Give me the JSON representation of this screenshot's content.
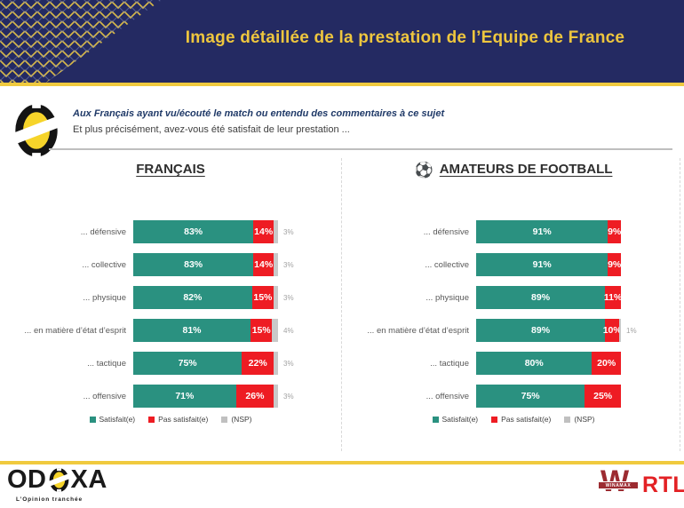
{
  "header": {
    "title": "Image détaillée de la prestation de l’Equipe de France"
  },
  "question": {
    "line1": "Aux Français ayant vu/écouté le match ou entendu des commentaires à ce sujet",
    "line2": "Et plus précisément, avez-vous été satisfait de leur prestation ..."
  },
  "icons": {
    "soccer_ball": "⚽"
  },
  "colors": {
    "navy": "#242a62",
    "gold": "#eec63e",
    "satisfait_green": "#2a9180",
    "pas_satisfait_red": "#ee1c23",
    "nsp_gray": "#c9c9c9"
  },
  "legend": {
    "satisfait": "Satisfait(e)",
    "pas_satisfait": "Pas satisfait(e)",
    "nsp": "(NSP)"
  },
  "chart_data": [
    {
      "type": "bar",
      "orientation": "horizontal",
      "stacked": true,
      "title": "FRANÇAIS",
      "xlim": [
        0,
        100
      ],
      "categories": [
        "... défensive",
        "... collective",
        "... physique",
        "... en matière d’état d’esprit",
        "... tactique",
        "... offensive"
      ],
      "series": [
        {
          "name": "Satisfait(e)",
          "color": "#2a9180",
          "values": [
            83,
            83,
            82,
            81,
            75,
            71
          ]
        },
        {
          "name": "Pas satisfait(e)",
          "color": "#ee1c23",
          "values": [
            14,
            14,
            15,
            15,
            22,
            26
          ]
        },
        {
          "name": "(NSP)",
          "color": "#c9c9c9",
          "values": [
            3,
            3,
            3,
            4,
            3,
            3
          ]
        }
      ]
    },
    {
      "type": "bar",
      "orientation": "horizontal",
      "stacked": true,
      "title": "AMATEURS DE FOOTBALL",
      "xlim": [
        0,
        100
      ],
      "categories": [
        "... défensive",
        "... collective",
        "... physique",
        "... en matière d’état d’esprit",
        "... tactique",
        "... offensive"
      ],
      "series": [
        {
          "name": "Satisfait(e)",
          "color": "#2a9180",
          "values": [
            91,
            91,
            89,
            89,
            80,
            75
          ]
        },
        {
          "name": "Pas satisfait(e)",
          "color": "#ee1c23",
          "values": [
            9,
            9,
            11,
            10,
            20,
            25
          ]
        },
        {
          "name": "(NSP)",
          "color": "#c9c9c9",
          "values": [
            0,
            0,
            0,
            1,
            0,
            0
          ]
        }
      ]
    }
  ],
  "footer": {
    "odoxa_left": "OD",
    "odoxa_right": "XA",
    "odoxa_tagline": "L’Opinion tranchée",
    "winamax_label": "WINAMAX",
    "rtl_label": "RTL"
  }
}
